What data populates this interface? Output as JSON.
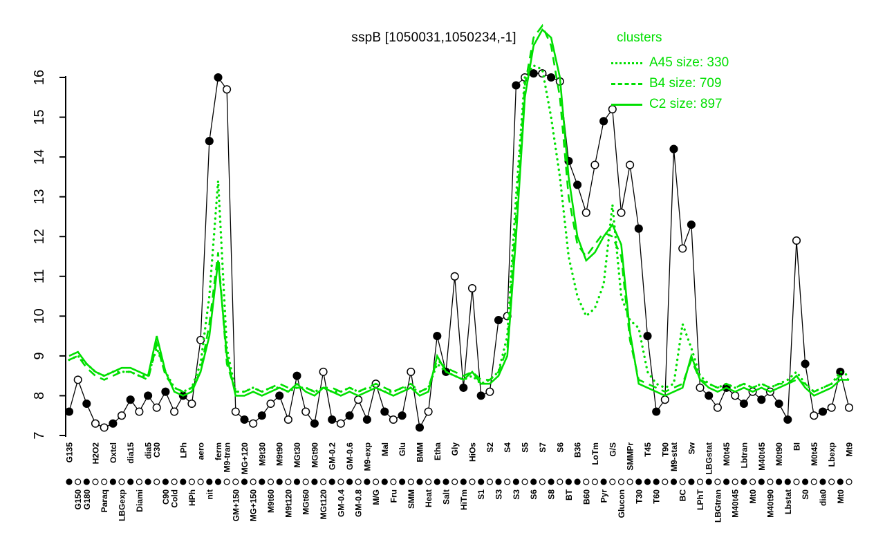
{
  "chart_data": {
    "type": "line",
    "title": "sspB [1050031,1050234,-1]",
    "ylabel": "",
    "xlabel": "",
    "ylim": [
      7,
      16
    ],
    "yticks": [
      7,
      8,
      9,
      10,
      11,
      12,
      13,
      14,
      15,
      16
    ],
    "grid": false,
    "accent_color": "#00DF00",
    "legend": {
      "title": "clusters",
      "position": "top-right",
      "entries": [
        {
          "label": "A45 size: 330",
          "style": "dotted"
        },
        {
          "label": "B4 size: 709",
          "style": "dashed"
        },
        {
          "label": "C2 size: 897",
          "style": "solid"
        }
      ]
    },
    "conditions": [
      {
        "label": "G135",
        "row": "top"
      },
      {
        "label": "G150",
        "row": "bottom"
      },
      {
        "label": "G180",
        "row": "bottom"
      },
      {
        "label": "H2O2",
        "row": "top"
      },
      {
        "label": "Paraq",
        "row": "bottom"
      },
      {
        "label": "Oxtcl",
        "row": "top"
      },
      {
        "label": "LBGexp",
        "row": "bottom"
      },
      {
        "label": "dia15",
        "row": "top"
      },
      {
        "label": "Diami",
        "row": "bottom"
      },
      {
        "label": "dia5",
        "row": "top"
      },
      {
        "label": "C30",
        "row": "top"
      },
      {
        "label": "C90",
        "row": "bottom"
      },
      {
        "label": "Cold",
        "row": "bottom"
      },
      {
        "label": "LPh",
        "row": "top"
      },
      {
        "label": "HPh",
        "row": "bottom"
      },
      {
        "label": "aero",
        "row": "top"
      },
      {
        "label": "nit",
        "row": "bottom"
      },
      {
        "label": "ferm",
        "row": "top"
      },
      {
        "label": "M9-tran",
        "row": "top"
      },
      {
        "label": "GM+150",
        "row": "bottom"
      },
      {
        "label": "MG+120",
        "row": "top"
      },
      {
        "label": "MG+150",
        "row": "bottom"
      },
      {
        "label": "M9t30",
        "row": "top"
      },
      {
        "label": "M9t60",
        "row": "bottom"
      },
      {
        "label": "M9t90",
        "row": "top"
      },
      {
        "label": "M9t120",
        "row": "bottom"
      },
      {
        "label": "MGt30",
        "row": "top"
      },
      {
        "label": "MGt60",
        "row": "bottom"
      },
      {
        "label": "MGt90",
        "row": "top"
      },
      {
        "label": "MGt120",
        "row": "bottom"
      },
      {
        "label": "GM-0.2",
        "row": "top"
      },
      {
        "label": "GM-0.4",
        "row": "bottom"
      },
      {
        "label": "GM-0.6",
        "row": "top"
      },
      {
        "label": "GM-0.8",
        "row": "bottom"
      },
      {
        "label": "M9-exp",
        "row": "top"
      },
      {
        "label": "M/G",
        "row": "bottom"
      },
      {
        "label": "Mal",
        "row": "top"
      },
      {
        "label": "Fru",
        "row": "bottom"
      },
      {
        "label": "Glu",
        "row": "top"
      },
      {
        "label": "SMM",
        "row": "bottom"
      },
      {
        "label": "BMM",
        "row": "top"
      },
      {
        "label": "Heat",
        "row": "bottom"
      },
      {
        "label": "Etha",
        "row": "top"
      },
      {
        "label": "Salt",
        "row": "bottom"
      },
      {
        "label": "Gly",
        "row": "top"
      },
      {
        "label": "HiTm",
        "row": "bottom"
      },
      {
        "label": "HiOs",
        "row": "top"
      },
      {
        "label": "S1",
        "row": "bottom"
      },
      {
        "label": "S2",
        "row": "top"
      },
      {
        "label": "S3",
        "row": "bottom"
      },
      {
        "label": "S4",
        "row": "top"
      },
      {
        "label": "S3",
        "row": "bottom"
      },
      {
        "label": "S5",
        "row": "top"
      },
      {
        "label": "S6",
        "row": "bottom"
      },
      {
        "label": "S7",
        "row": "top"
      },
      {
        "label": "S8",
        "row": "bottom"
      },
      {
        "label": "S6",
        "row": "top"
      },
      {
        "label": "BT",
        "row": "bottom"
      },
      {
        "label": "B36",
        "row": "top"
      },
      {
        "label": "B60",
        "row": "bottom"
      },
      {
        "label": "LoTm",
        "row": "top"
      },
      {
        "label": "Pyr",
        "row": "bottom"
      },
      {
        "label": "G/S",
        "row": "top"
      },
      {
        "label": "Glucon",
        "row": "bottom"
      },
      {
        "label": "SMMPr",
        "row": "top"
      },
      {
        "label": "T30",
        "row": "bottom"
      },
      {
        "label": "T45",
        "row": "top"
      },
      {
        "label": "T60",
        "row": "bottom"
      },
      {
        "label": "T90",
        "row": "top"
      },
      {
        "label": "M9-stat",
        "row": "top"
      },
      {
        "label": "BC",
        "row": "bottom"
      },
      {
        "label": "Sw",
        "row": "top"
      },
      {
        "label": "LPhT",
        "row": "bottom"
      },
      {
        "label": "LBGstat",
        "row": "top"
      },
      {
        "label": "LBGtran",
        "row": "bottom"
      },
      {
        "label": "M0t45",
        "row": "top"
      },
      {
        "label": "M40t45",
        "row": "bottom"
      },
      {
        "label": "Lbtran",
        "row": "top"
      },
      {
        "label": "Mt0",
        "row": "bottom"
      },
      {
        "label": "M40t45",
        "row": "top"
      },
      {
        "label": "M40t90",
        "row": "bottom"
      },
      {
        "label": "M0t90",
        "row": "top"
      },
      {
        "label": "Lbstat",
        "row": "bottom"
      },
      {
        "label": "BI",
        "row": "top"
      },
      {
        "label": "S0",
        "row": "bottom"
      },
      {
        "label": "M0t45",
        "row": "top"
      },
      {
        "label": "dia0",
        "row": "bottom"
      },
      {
        "label": "Lbexp",
        "row": "top"
      },
      {
        "label": "Mt0",
        "row": "bottom"
      },
      {
        "label": "Mt9",
        "row": "top"
      }
    ],
    "gene": {
      "name": "sspB",
      "values": [
        7.6,
        8.4,
        7.8,
        7.3,
        7.2,
        7.3,
        7.5,
        7.9,
        7.6,
        8.0,
        7.7,
        8.1,
        7.6,
        8.0,
        7.8,
        9.4,
        14.4,
        16.0,
        15.7,
        7.6,
        7.4,
        7.3,
        7.5,
        7.8,
        8.0,
        7.4,
        8.5,
        7.6,
        7.3,
        8.6,
        7.4,
        7.3,
        7.5,
        7.9,
        7.4,
        8.3,
        7.6,
        7.4,
        7.5,
        8.6,
        7.2,
        7.6,
        9.5,
        8.6,
        11.0,
        8.2,
        10.7,
        8.0,
        8.1,
        9.9,
        10.0,
        15.8,
        16.0,
        16.1,
        16.1,
        16.0,
        15.9,
        13.9,
        13.3,
        12.6,
        13.8,
        14.9,
        15.2,
        12.6,
        13.8,
        12.2,
        9.5,
        7.6,
        7.9,
        14.2,
        11.7,
        12.3,
        8.2,
        8.0,
        7.7,
        8.2,
        8.0,
        7.8,
        8.1,
        7.9,
        8.1,
        7.8,
        7.4,
        11.9,
        8.8,
        7.5,
        7.6,
        7.7,
        8.6,
        7.7
      ],
      "markers": [
        "filled",
        "open",
        "filled",
        "open",
        "open",
        "filled",
        "open",
        "filled",
        "open",
        "filled",
        "open",
        "filled",
        "open",
        "filled",
        "open",
        "open",
        "filled",
        "filled",
        "open",
        "open",
        "filled",
        "open",
        "filled",
        "open",
        "filled",
        "open",
        "filled",
        "open",
        "filled",
        "open",
        "filled",
        "open",
        "filled",
        "open",
        "filled",
        "open",
        "filled",
        "open",
        "filled",
        "open",
        "filled",
        "open",
        "filled",
        "filled",
        "open",
        "filled",
        "open",
        "filled",
        "open",
        "filled",
        "open",
        "filled",
        "open",
        "filled",
        "open",
        "filled",
        "open",
        "filled",
        "filled",
        "open",
        "open",
        "filled",
        "open",
        "open",
        "open",
        "filled",
        "filled",
        "filled",
        "open",
        "filled",
        "open",
        "filled",
        "open",
        "filled",
        "open",
        "filled",
        "open",
        "filled",
        "open",
        "filled",
        "open",
        "filled",
        "filled",
        "open",
        "filled",
        "open",
        "filled",
        "open",
        "filled",
        "open"
      ]
    },
    "clusters": [
      {
        "name": "A45",
        "size": 330,
        "style": "dotted",
        "values": [
          8.9,
          9.0,
          8.8,
          8.6,
          8.5,
          8.6,
          8.6,
          8.6,
          8.5,
          8.5,
          9.2,
          8.6,
          8.2,
          8.1,
          8.2,
          8.8,
          10.5,
          13.4,
          9.2,
          8.1,
          8.1,
          8.2,
          8.1,
          8.2,
          8.2,
          8.1,
          8.2,
          8.2,
          8.1,
          8.2,
          8.1,
          8.1,
          8.2,
          8.1,
          8.2,
          8.2,
          8.1,
          8.1,
          8.2,
          8.2,
          8.1,
          8.2,
          8.8,
          8.6,
          8.5,
          8.4,
          8.5,
          8.3,
          8.4,
          8.6,
          9.5,
          13.0,
          16.0,
          16.3,
          16.2,
          15.0,
          13.5,
          11.5,
          10.5,
          10.0,
          10.2,
          10.8,
          12.8,
          10.5,
          9.9,
          9.7,
          8.6,
          8.3,
          8.2,
          8.3,
          9.8,
          9.2,
          8.5,
          8.3,
          8.2,
          8.3,
          8.2,
          8.3,
          8.2,
          8.3,
          8.2,
          8.3,
          8.4,
          8.6,
          8.3,
          8.1,
          8.2,
          8.3,
          8.6,
          8.5
        ]
      },
      {
        "name": "B4",
        "size": 709,
        "style": "dashed",
        "values": [
          8.9,
          9.0,
          8.7,
          8.5,
          8.4,
          8.5,
          8.6,
          8.6,
          8.5,
          8.4,
          9.3,
          8.5,
          8.2,
          8.1,
          8.2,
          8.6,
          9.8,
          11.6,
          8.8,
          8.1,
          8.1,
          8.2,
          8.1,
          8.2,
          8.3,
          8.2,
          8.2,
          8.2,
          8.1,
          8.2,
          8.2,
          8.1,
          8.2,
          8.1,
          8.2,
          8.3,
          8.2,
          8.1,
          8.2,
          8.3,
          8.1,
          8.2,
          8.9,
          8.7,
          8.6,
          8.5,
          8.6,
          8.4,
          8.4,
          8.6,
          9.2,
          12.5,
          15.8,
          17.0,
          17.3,
          16.8,
          15.5,
          13.0,
          11.8,
          11.5,
          11.8,
          12.1,
          12.0,
          11.5,
          9.4,
          8.4,
          8.3,
          8.2,
          8.1,
          8.2,
          8.3,
          8.9,
          8.4,
          8.3,
          8.2,
          8.3,
          8.2,
          8.3,
          8.2,
          8.3,
          8.2,
          8.3,
          8.3,
          8.4,
          8.3,
          8.1,
          8.2,
          8.3,
          8.5,
          8.4
        ]
      },
      {
        "name": "C2",
        "size": 897,
        "style": "solid",
        "values": [
          9.0,
          9.1,
          8.8,
          8.6,
          8.5,
          8.6,
          8.7,
          8.7,
          8.6,
          8.5,
          9.5,
          8.6,
          8.1,
          8.0,
          8.1,
          8.6,
          9.5,
          11.4,
          9.0,
          8.0,
          8.0,
          8.1,
          8.0,
          8.1,
          8.2,
          8.1,
          8.3,
          8.1,
          8.0,
          8.2,
          8.1,
          8.0,
          8.1,
          8.0,
          8.1,
          8.2,
          8.1,
          8.0,
          8.1,
          8.2,
          8.0,
          8.1,
          9.0,
          8.6,
          8.5,
          8.4,
          8.6,
          8.3,
          8.3,
          8.5,
          9.0,
          12.0,
          15.5,
          16.8,
          17.2,
          17.0,
          16.0,
          13.5,
          12.0,
          11.4,
          11.6,
          12.0,
          12.3,
          11.8,
          9.6,
          8.3,
          8.2,
          8.1,
          8.0,
          8.1,
          8.2,
          9.0,
          8.4,
          8.2,
          8.1,
          8.2,
          8.1,
          8.2,
          8.1,
          8.2,
          8.1,
          8.2,
          8.3,
          8.5,
          8.2,
          8.0,
          8.1,
          8.2,
          8.4,
          8.4
        ]
      }
    ]
  }
}
